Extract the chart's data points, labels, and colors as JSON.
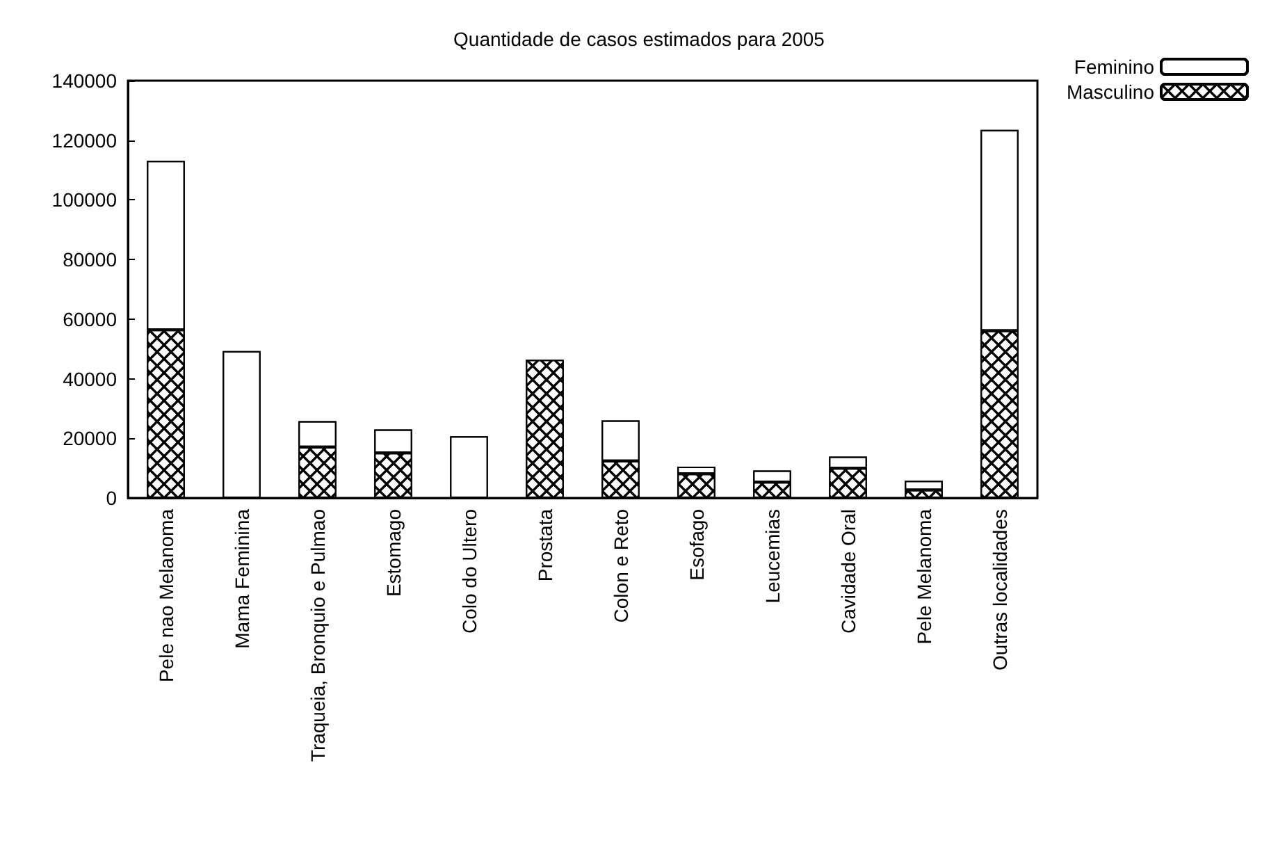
{
  "chart_data": {
    "type": "bar",
    "title": "Quantidade de casos estimados para 2005",
    "stacked": true,
    "legend": "top right",
    "grid": false,
    "categories": [
      "Pele nao Melanoma",
      "Mama Feminina",
      "Traqueia, Bronquio e Pulmao",
      "Estomago",
      "Colo do Ultero",
      "Prostata",
      "Colon e Reto",
      "Esofago",
      "Leucemias",
      "Cavidade Oral",
      "Pele Melanoma",
      "Outras localidades"
    ],
    "ylim": [
      0,
      140000
    ],
    "yticks": [
      0,
      20000,
      40000,
      60000,
      80000,
      100000,
      120000,
      140000
    ],
    "series": [
      {
        "name": "Masculino",
        "color": "#000000",
        "values": [
          56400,
          null,
          17100,
          15100,
          null,
          46400,
          12400,
          8100,
          5300,
          10000,
          2700,
          56100
        ]
      },
      {
        "name": "Feminino",
        "color": "#ffffff",
        "values": [
          56700,
          49300,
          8700,
          7900,
          20700,
          null,
          13600,
          2400,
          3900,
          3900,
          3100,
          67400
        ]
      }
    ]
  }
}
